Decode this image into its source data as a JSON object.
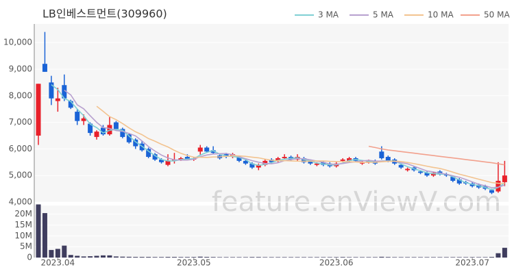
{
  "chart_data": {
    "type": "candlestick",
    "title": "LB인베스트먼트(309960)",
    "watermark": "feature.enViewV.com",
    "categories": [
      null,
      null,
      null,
      "2023.04",
      null,
      null,
      null,
      null,
      null,
      null,
      null,
      null,
      null,
      null,
      null,
      null,
      null,
      null,
      null,
      null,
      null,
      null,
      null,
      null,
      "2023.05",
      null,
      null,
      null,
      null,
      null,
      null,
      null,
      null,
      null,
      null,
      null,
      null,
      null,
      null,
      null,
      null,
      null,
      null,
      null,
      null,
      null,
      "2023.06",
      null,
      null,
      null,
      null,
      null,
      null,
      null,
      null,
      null,
      null,
      null,
      null,
      null,
      null,
      null,
      null,
      null,
      null,
      null,
      null,
      "2023.07",
      null,
      null,
      null,
      null,
      null
    ],
    "open": [
      6500,
      9200,
      8500,
      7800,
      8400,
      7800,
      7400,
      7050,
      6950,
      6450,
      6800,
      6550,
      7000,
      6750,
      6550,
      6350,
      6200,
      6000,
      5800,
      5600,
      5400,
      5550,
      5600,
      5700,
      5600,
      5900,
      6050,
      5950,
      5750,
      5800,
      5700,
      5700,
      5550,
      5450,
      5300,
      5400,
      5600,
      5550,
      5650,
      5700,
      5600,
      5650,
      5550,
      5400,
      5500,
      5450,
      5350,
      5550,
      5550,
      5650,
      5450,
      5500,
      5550,
      5900,
      5700,
      5600,
      5400,
      5200,
      5300,
      5150,
      5100,
      5000,
      5150,
      5050,
      4950,
      4850,
      4750,
      4700,
      4650,
      4600,
      4450,
      4400,
      4750
    ],
    "high": [
      8450,
      10400,
      8750,
      8300,
      8800,
      7850,
      7500,
      7300,
      7000,
      6700,
      6900,
      7200,
      7050,
      6800,
      6600,
      6400,
      6300,
      6050,
      5850,
      5650,
      5800,
      5850,
      5700,
      5800,
      5700,
      6150,
      6100,
      6100,
      5800,
      5850,
      5850,
      5750,
      5600,
      5500,
      5450,
      5600,
      5650,
      5700,
      5800,
      5750,
      5800,
      5700,
      5600,
      5500,
      5550,
      5500,
      5500,
      5650,
      5700,
      5700,
      5550,
      5600,
      5600,
      6100,
      5750,
      5650,
      5450,
      5300,
      5350,
      5200,
      5150,
      5150,
      5200,
      5100,
      5000,
      4900,
      4800,
      4750,
      4700,
      4650,
      4500,
      5500,
      5550
    ],
    "low": [
      6150,
      8900,
      7650,
      7400,
      7800,
      7500,
      6900,
      6900,
      6500,
      6350,
      6500,
      6500,
      6700,
      6400,
      6200,
      6000,
      5900,
      5650,
      5550,
      5450,
      5350,
      5450,
      5550,
      5600,
      5550,
      5750,
      5850,
      5800,
      5600,
      5650,
      5650,
      5500,
      5400,
      5250,
      5200,
      5350,
      5450,
      5500,
      5600,
      5550,
      5550,
      5450,
      5400,
      5350,
      5350,
      5300,
      5300,
      5500,
      5500,
      5500,
      5400,
      5450,
      5400,
      5600,
      5500,
      5400,
      5250,
      5150,
      5150,
      5050,
      4950,
      4950,
      5000,
      4950,
      4750,
      4650,
      4650,
      4550,
      4500,
      4450,
      4300,
      4350,
      4600
    ],
    "close": [
      8450,
      8900,
      7900,
      7900,
      7900,
      7550,
      7050,
      7150,
      6600,
      6650,
      6550,
      6900,
      6750,
      6450,
      6250,
      6100,
      5950,
      5700,
      5600,
      5500,
      5550,
      5600,
      5650,
      5600,
      5650,
      6050,
      5900,
      5850,
      5650,
      5700,
      5800,
      5550,
      5450,
      5300,
      5400,
      5550,
      5500,
      5650,
      5700,
      5600,
      5700,
      5500,
      5450,
      5450,
      5400,
      5350,
      5450,
      5600,
      5650,
      5550,
      5500,
      5550,
      5450,
      5650,
      5550,
      5450,
      5300,
      5250,
      5200,
      5100,
      5000,
      5100,
      5050,
      5000,
      4800,
      4700,
      4700,
      4600,
      4550,
      4500,
      4350,
      4800,
      5000
    ],
    "volume": [
      24500000,
      20500000,
      3500000,
      4000000,
      5500000,
      1200000,
      800000,
      500000,
      600000,
      800000,
      1000000,
      1000000,
      500000,
      400000,
      350000,
      300000,
      300000,
      300000,
      250000,
      250000,
      300000,
      300000,
      250000,
      250000,
      250000,
      400000,
      300000,
      250000,
      200000,
      200000,
      200000,
      200000,
      200000,
      250000,
      250000,
      200000,
      200000,
      200000,
      200000,
      200000,
      200000,
      200000,
      200000,
      200000,
      200000,
      200000,
      200000,
      250000,
      200000,
      200000,
      200000,
      200000,
      200000,
      350000,
      250000,
      200000,
      200000,
      200000,
      200000,
      200000,
      200000,
      200000,
      200000,
      200000,
      200000,
      200000,
      200000,
      200000,
      200000,
      200000,
      300000,
      2000000,
      4500000
    ],
    "ma_series": [
      {
        "name": "3 MA",
        "color": "#7fd0d4",
        "values": [
          null,
          null,
          8417,
          8233,
          7900,
          7783,
          7500,
          7250,
          6933,
          6800,
          6600,
          6700,
          6733,
          6700,
          6483,
          6267,
          6100,
          5917,
          5750,
          5600,
          5550,
          5550,
          5600,
          5617,
          5633,
          5767,
          5867,
          5933,
          5800,
          5733,
          5717,
          5683,
          5600,
          5433,
          5383,
          5417,
          5483,
          5567,
          5617,
          5650,
          5667,
          5600,
          5550,
          5467,
          5433,
          5400,
          5400,
          5467,
          5567,
          5600,
          5567,
          5533,
          5500,
          5550,
          5550,
          5550,
          5433,
          5333,
          5250,
          5183,
          5100,
          5067,
          5050,
          5050,
          4950,
          4833,
          4733,
          4667,
          4617,
          4550,
          4467,
          4550,
          4717
        ]
      },
      {
        "name": "5 MA",
        "color": "#b7a0cf",
        "values": [
          null,
          null,
          null,
          null,
          8210,
          8030,
          7660,
          7510,
          7250,
          7000,
          6800,
          6770,
          6690,
          6660,
          6580,
          6490,
          6300,
          6090,
          5920,
          5770,
          5660,
          5590,
          5580,
          5580,
          5610,
          5710,
          5770,
          5810,
          5820,
          5830,
          5780,
          5710,
          5630,
          5560,
          5500,
          5450,
          5440,
          5480,
          5560,
          5600,
          5630,
          5630,
          5590,
          5540,
          5500,
          5430,
          5420,
          5450,
          5490,
          5520,
          5550,
          5570,
          5540,
          5540,
          5540,
          5530,
          5480,
          5440,
          5350,
          5260,
          5170,
          5130,
          5090,
          5050,
          4990,
          4930,
          4850,
          4760,
          4670,
          4610,
          4540,
          4560,
          4640
        ]
      },
      {
        "name": "10 MA",
        "color": "#f3c38f",
        "values": [
          null,
          null,
          null,
          null,
          null,
          null,
          null,
          null,
          null,
          7605,
          7415,
          7215,
          7100,
          6955,
          6790,
          6645,
          6535,
          6390,
          6290,
          6175,
          6075,
          5945,
          5835,
          5750,
          5690,
          5685,
          5680,
          5695,
          5700,
          5720,
          5745,
          5740,
          5720,
          5690,
          5665,
          5615,
          5575,
          5555,
          5560,
          5550,
          5540,
          5535,
          5535,
          5550,
          5550,
          5530,
          5525,
          5520,
          5515,
          5510,
          5490,
          5495,
          5495,
          5515,
          5530,
          5540,
          5525,
          5490,
          5445,
          5400,
          5350,
          5305,
          5265,
          5200,
          5125,
          5050,
          4990,
          4925,
          4860,
          4800,
          4735,
          4705,
          4700
        ]
      },
      {
        "name": "50 MA",
        "color": "#f2a08c",
        "values": [
          null,
          null,
          null,
          null,
          null,
          null,
          null,
          null,
          null,
          null,
          null,
          null,
          null,
          null,
          null,
          null,
          null,
          null,
          null,
          null,
          null,
          null,
          null,
          null,
          null,
          null,
          null,
          null,
          null,
          null,
          null,
          null,
          null,
          null,
          null,
          null,
          null,
          null,
          null,
          null,
          null,
          null,
          null,
          null,
          null,
          null,
          null,
          null,
          null,
          null,
          null,
          6100,
          6050,
          6000,
          5960,
          5930,
          5900,
          5870,
          5840,
          5810,
          5780,
          5750,
          5720,
          5690,
          5660,
          5630,
          5600,
          5570,
          5540,
          5510,
          5480,
          5440,
          5400
        ]
      }
    ],
    "up_color": "#e8202a",
    "down_color": "#1a63d6",
    "volume_color": "#3f3d5e",
    "ylim": [
      4000,
      10700
    ],
    "yticks": [
      {
        "value": 4000,
        "label": "4,000"
      },
      {
        "value": 5000,
        "label": "5,000"
      },
      {
        "value": 6000,
        "label": "6,000"
      },
      {
        "value": 7000,
        "label": "7,000"
      },
      {
        "value": 8000,
        "label": "8,000"
      },
      {
        "value": 9000,
        "label": "9,000"
      },
      {
        "value": 10000,
        "label": "10,000"
      }
    ],
    "volume_ylim": [
      0,
      24000000
    ],
    "volume_yticks": [
      {
        "value": 0,
        "label": "0"
      },
      {
        "value": 5000000,
        "label": "5M"
      },
      {
        "value": 10000000,
        "label": "10M"
      },
      {
        "value": 15000000,
        "label": "15M"
      },
      {
        "value": 20000000,
        "label": "20M"
      }
    ],
    "grid": true
  }
}
